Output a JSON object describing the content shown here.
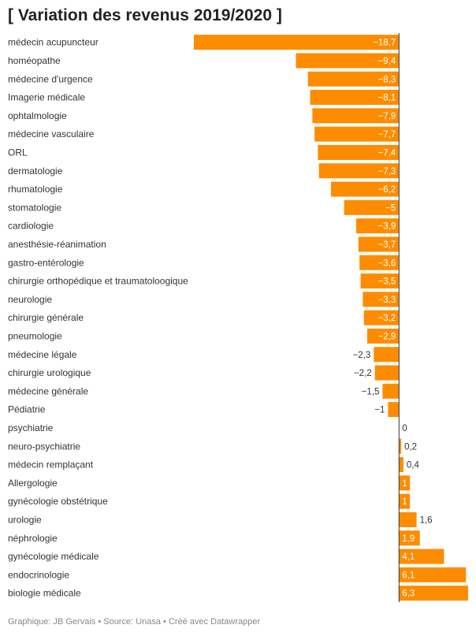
{
  "header": {
    "title": "[ Variation des revenus 2019/2020 ]"
  },
  "footer": {
    "credit": "Graphique: JB Gervais • Source: Unasa • Créé avec Datawrapper"
  },
  "colors": {
    "bar": "#fd8c01",
    "zero_line": "#333333",
    "label_inside": "#ffffff",
    "label_outside": "#333333"
  },
  "chart_data": {
    "type": "bar",
    "orientation": "horizontal",
    "title": "[ Variation des revenus 2019/2020 ]",
    "categories": [
      "médecin acupuncteur",
      "homéopathe",
      "médecine d'urgence",
      "Imagerie médicale",
      "ophtalmologie",
      "médecine vasculaire",
      "ORL",
      "dermatologie",
      "rhumatologie",
      "stomatologie",
      "cardiologie",
      "anesthésie-réanimation",
      "gastro-entérologie",
      "chirurgie orthopédique et traumatoloogique",
      "neurologie",
      "chirurgie générale",
      "pneumologie",
      "médecine légale",
      "chirurgie urologique",
      "médecine générale",
      "Pédiatrie",
      "psychiatrie",
      "neuro-psychiatrie",
      "médecin remplaçant",
      "Allergologie",
      "gynécologie obstétrique",
      "urologie",
      "néphrologie",
      "gynécologie médicale",
      "endocrinologie",
      "biologie médicale"
    ],
    "values": [
      -18.7,
      -9.4,
      -8.3,
      -8.1,
      -7.9,
      -7.7,
      -7.4,
      -7.3,
      -6.2,
      -5,
      -3.9,
      -3.7,
      -3.6,
      -3.5,
      -3.3,
      -3.2,
      -2.9,
      -2.3,
      -2.2,
      -1.5,
      -1,
      0,
      0.2,
      0.4,
      1,
      1,
      1.6,
      1.9,
      4.1,
      6.1,
      6.3
    ],
    "labels": [
      "−18,7",
      "−9,4",
      "−8,3",
      "−8,1",
      "−7,9",
      "−7,7",
      "−7,4",
      "−7,3",
      "−6,2",
      "−5",
      "−3,9",
      "−3,7",
      "−3,6",
      "−3,5",
      "−3,3",
      "−3,2",
      "−2,9",
      "−2,3",
      "−2,2",
      "−1,5",
      "−1",
      "0",
      "0,2",
      "0,4",
      "1",
      "1",
      "1,6",
      "1,9",
      "4,1",
      "6,1",
      "6,3"
    ],
    "xlim": [
      -18.7,
      6.3
    ],
    "grid": false,
    "legend": "none"
  }
}
